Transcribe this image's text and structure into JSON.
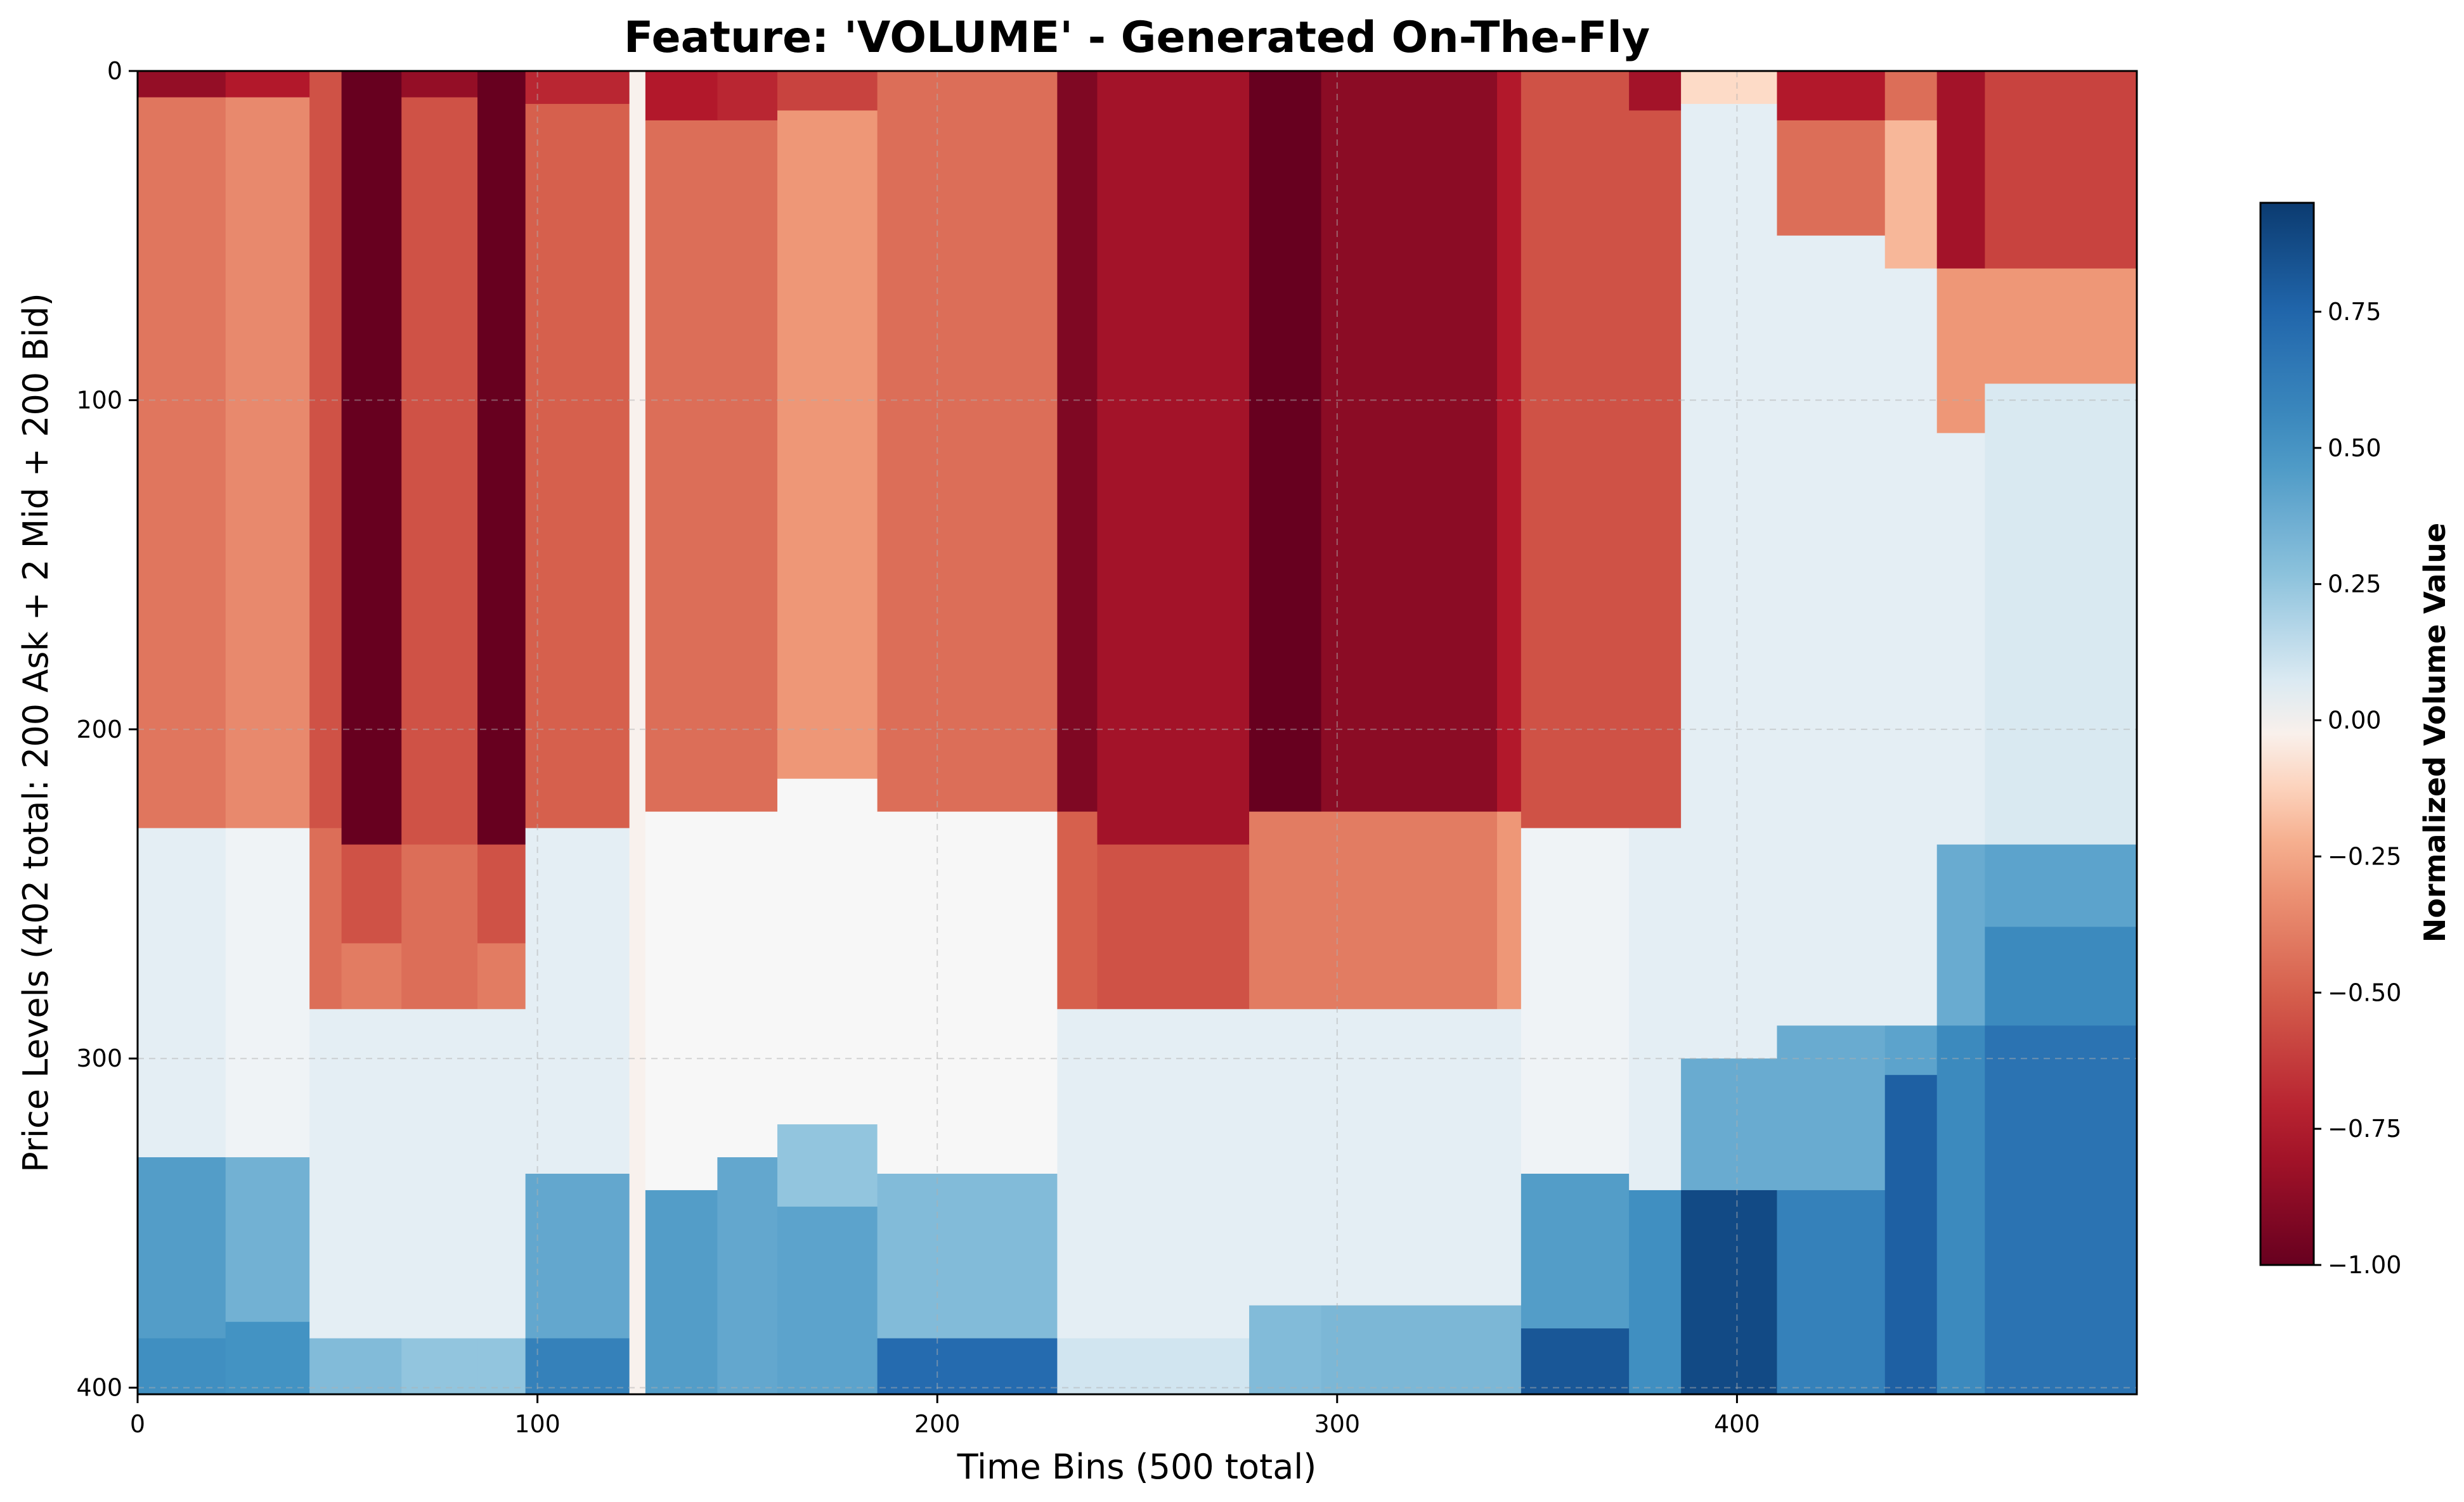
{
  "chart_data": {
    "type": "heatmap",
    "title": "Feature: 'VOLUME' - Generated On-The-Fly",
    "xlabel": "Time Bins (500 total)",
    "ylabel": "Price Levels (402 total: 200 Ask + 2 Mid + 200 Bid)",
    "xlim": [
      0,
      500
    ],
    "ylim": [
      402,
      0
    ],
    "xticks": [
      "0",
      "100",
      "200",
      "300",
      "400"
    ],
    "yticks": [
      "0",
      "100",
      "200",
      "300",
      "400"
    ],
    "grid": true,
    "colormap": "RdBu",
    "colorbar": {
      "label": "Normalized Volume Value",
      "range": [
        -1.0,
        0.95
      ],
      "ticks": [
        "0.75",
        "0.50",
        "0.25",
        "0.00",
        "−0.25",
        "−0.50",
        "−0.75",
        "−1.00"
      ]
    },
    "segments": [
      {
        "x": [
          0,
          22
        ],
        "layers": [
          [
            0,
            8,
            -0.85
          ],
          [
            8,
            230,
            -0.42
          ],
          [
            230,
            330,
            0.05
          ],
          [
            330,
            385,
            0.45
          ],
          [
            385,
            402,
            0.52
          ]
        ]
      },
      {
        "x": [
          22,
          43
        ],
        "layers": [
          [
            0,
            8,
            -0.75
          ],
          [
            8,
            230,
            -0.35
          ],
          [
            230,
            330,
            0.02
          ],
          [
            330,
            380,
            0.35
          ],
          [
            380,
            402,
            0.5
          ]
        ]
      },
      {
        "x": [
          43,
          51
        ],
        "layers": [
          [
            0,
            230,
            -0.55
          ],
          [
            230,
            285,
            -0.45
          ],
          [
            285,
            385,
            0.05
          ],
          [
            385,
            402,
            0.3
          ]
        ]
      },
      {
        "x": [
          51,
          66
        ],
        "layers": [
          [
            0,
            235,
            -1.0
          ],
          [
            235,
            265,
            -0.55
          ],
          [
            265,
            285,
            -0.4
          ],
          [
            285,
            385,
            0.05
          ],
          [
            385,
            402,
            0.3
          ]
        ]
      },
      {
        "x": [
          66,
          85
        ],
        "layers": [
          [
            0,
            8,
            -0.85
          ],
          [
            8,
            235,
            -0.55
          ],
          [
            235,
            285,
            -0.45
          ],
          [
            285,
            385,
            0.05
          ],
          [
            385,
            402,
            0.25
          ]
        ]
      },
      {
        "x": [
          85,
          97
        ],
        "layers": [
          [
            0,
            235,
            -1.0
          ],
          [
            235,
            265,
            -0.55
          ],
          [
            265,
            285,
            -0.4
          ],
          [
            285,
            385,
            0.05
          ],
          [
            385,
            402,
            0.25
          ]
        ]
      },
      {
        "x": [
          97,
          123
        ],
        "layers": [
          [
            0,
            10,
            -0.7
          ],
          [
            10,
            230,
            -0.5
          ],
          [
            230,
            335,
            0.05
          ],
          [
            335,
            385,
            0.4
          ],
          [
            385,
            402,
            0.6
          ]
        ]
      },
      {
        "x": [
          123,
          127
        ],
        "layers": [
          [
            0,
            402,
            -0.02
          ]
        ]
      },
      {
        "x": [
          127,
          145
        ],
        "layers": [
          [
            0,
            15,
            -0.75
          ],
          [
            15,
            225,
            -0.45
          ],
          [
            225,
            340,
            0.0
          ],
          [
            340,
            402,
            0.45
          ]
        ]
      },
      {
        "x": [
          145,
          160
        ],
        "layers": [
          [
            0,
            15,
            -0.7
          ],
          [
            15,
            225,
            -0.45
          ],
          [
            225,
            330,
            0.0
          ],
          [
            330,
            402,
            0.4
          ]
        ]
      },
      {
        "x": [
          160,
          185
        ],
        "layers": [
          [
            0,
            12,
            -0.6
          ],
          [
            12,
            215,
            -0.3
          ],
          [
            215,
            320,
            0.0
          ],
          [
            320,
            345,
            0.25
          ],
          [
            345,
            402,
            0.42
          ]
        ]
      },
      {
        "x": [
          185,
          230
        ],
        "layers": [
          [
            0,
            225,
            -0.45
          ],
          [
            225,
            335,
            0.0
          ],
          [
            335,
            385,
            0.3
          ],
          [
            385,
            402,
            0.72
          ]
        ]
      },
      {
        "x": [
          230,
          240
        ],
        "layers": [
          [
            0,
            225,
            -0.92
          ],
          [
            225,
            285,
            -0.5
          ],
          [
            285,
            385,
            0.05
          ],
          [
            385,
            402,
            0.1
          ]
        ]
      },
      {
        "x": [
          240,
          278
        ],
        "layers": [
          [
            0,
            235,
            -0.8
          ],
          [
            235,
            285,
            -0.55
          ],
          [
            285,
            385,
            0.05
          ],
          [
            385,
            402,
            0.1
          ]
        ]
      },
      {
        "x": [
          278,
          296
        ],
        "layers": [
          [
            0,
            225,
            -1.0
          ],
          [
            225,
            285,
            -0.4
          ],
          [
            285,
            375,
            0.05
          ],
          [
            375,
            402,
            0.3
          ]
        ]
      },
      {
        "x": [
          296,
          340
        ],
        "layers": [
          [
            0,
            225,
            -0.88
          ],
          [
            225,
            285,
            -0.4
          ],
          [
            285,
            375,
            0.05
          ],
          [
            375,
            402,
            0.32
          ]
        ]
      },
      {
        "x": [
          340,
          346
        ],
        "layers": [
          [
            0,
            225,
            -0.75
          ],
          [
            225,
            285,
            -0.3
          ],
          [
            285,
            375,
            0.05
          ],
          [
            375,
            402,
            0.32
          ]
        ]
      },
      {
        "x": [
          346,
          373
        ],
        "layers": [
          [
            0,
            230,
            -0.55
          ],
          [
            230,
            335,
            0.02
          ],
          [
            335,
            382,
            0.45
          ],
          [
            382,
            402,
            0.82
          ]
        ]
      },
      {
        "x": [
          373,
          386
        ],
        "layers": [
          [
            0,
            12,
            -0.8
          ],
          [
            12,
            230,
            -0.55
          ],
          [
            230,
            340,
            0.05
          ],
          [
            340,
            402,
            0.52
          ]
        ]
      },
      {
        "x": [
          386,
          410
        ],
        "layers": [
          [
            0,
            10,
            -0.1
          ],
          [
            10,
            300,
            0.05
          ],
          [
            300,
            340,
            0.38
          ],
          [
            340,
            402,
            0.88
          ]
        ]
      },
      {
        "x": [
          410,
          437
        ],
        "layers": [
          [
            0,
            15,
            -0.75
          ],
          [
            15,
            50,
            -0.45
          ],
          [
            50,
            290,
            0.05
          ],
          [
            290,
            340,
            0.38
          ],
          [
            340,
            402,
            0.6
          ]
        ]
      },
      {
        "x": [
          437,
          450
        ],
        "layers": [
          [
            0,
            15,
            -0.45
          ],
          [
            15,
            60,
            -0.2
          ],
          [
            60,
            290,
            0.05
          ],
          [
            290,
            305,
            0.42
          ],
          [
            305,
            402,
            0.78
          ]
        ]
      },
      {
        "x": [
          450,
          462
        ],
        "layers": [
          [
            0,
            60,
            -0.8
          ],
          [
            60,
            110,
            -0.3
          ],
          [
            110,
            235,
            0.05
          ],
          [
            235,
            290,
            0.38
          ],
          [
            290,
            402,
            0.55
          ]
        ]
      },
      {
        "x": [
          462,
          500
        ],
        "layers": [
          [
            0,
            60,
            -0.6
          ],
          [
            60,
            95,
            -0.3
          ],
          [
            95,
            235,
            0.08
          ],
          [
            235,
            260,
            0.42
          ],
          [
            260,
            290,
            0.55
          ],
          [
            290,
            402,
            0.68
          ]
        ]
      }
    ]
  }
}
